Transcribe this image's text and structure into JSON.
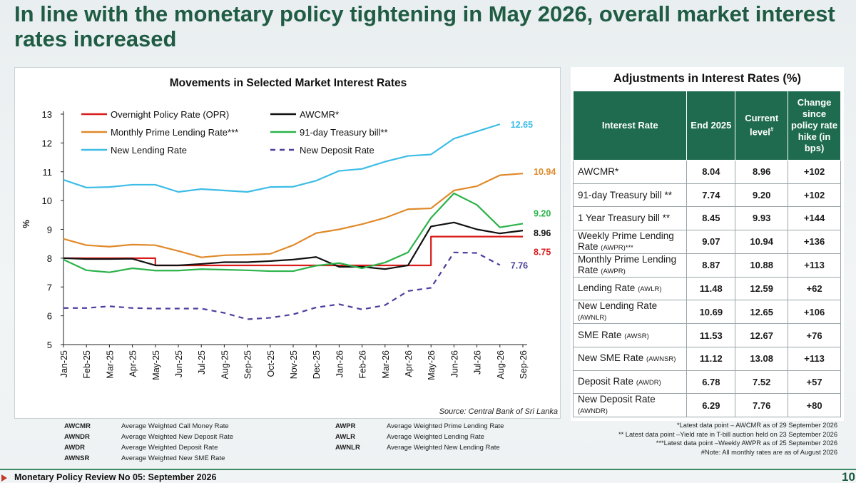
{
  "slide": {
    "title": "In line with the monetary policy tightening in May 2026, overall market interest rates increased"
  },
  "chart_data": {
    "type": "line",
    "title": "Movements in Selected Market Interest Rates",
    "ylabel": "%",
    "xlabel": "",
    "ylim": [
      5,
      13
    ],
    "yticks": [
      5,
      6,
      7,
      8,
      9,
      10,
      11,
      12,
      13
    ],
    "grid": false,
    "legend_placement": "top-left",
    "categories": [
      "Jan-25",
      "Feb-25",
      "Mar-25",
      "Apr-25",
      "May-25",
      "Jun-25",
      "Jul-25",
      "Aug-25",
      "Sep-25",
      "Oct-25",
      "Nov-25",
      "Dec-25",
      "Jan-26",
      "Feb-26",
      "Mar-26",
      "Apr-26",
      "May-26",
      "Jun-26",
      "Jul-26",
      "Aug-26",
      "Sep-26"
    ],
    "series": [
      {
        "name": "Overnight Policy Rate (OPR)",
        "color": "#d91c1c",
        "dash": false,
        "step": true,
        "end_label": "8.75",
        "values": [
          8.0,
          8.0,
          8.0,
          8.0,
          7.75,
          7.75,
          7.75,
          7.75,
          7.75,
          7.75,
          7.75,
          7.75,
          7.75,
          7.75,
          7.75,
          7.75,
          8.75,
          8.75,
          8.75,
          8.75,
          8.75
        ]
      },
      {
        "name": "AWCMR*",
        "color": "#111111",
        "dash": false,
        "step": false,
        "end_label": "8.96",
        "values": [
          8.0,
          7.97,
          7.97,
          7.98,
          7.75,
          7.75,
          7.8,
          7.86,
          7.86,
          7.9,
          7.95,
          8.04,
          7.7,
          7.7,
          7.62,
          7.75,
          9.1,
          9.24,
          9.0,
          8.86,
          8.96
        ]
      },
      {
        "name": "Monthly Prime Lending Rate***",
        "color": "#e08a2a",
        "dash": false,
        "step": false,
        "end_label": "10.94",
        "values": [
          8.67,
          8.45,
          8.4,
          8.47,
          8.45,
          8.25,
          8.03,
          8.1,
          8.12,
          8.15,
          8.45,
          8.87,
          9.0,
          9.18,
          9.4,
          9.7,
          9.73,
          10.35,
          10.5,
          10.88,
          10.94
        ]
      },
      {
        "name": "91-day Treasury bill**",
        "color": "#2bb34a",
        "dash": false,
        "step": false,
        "end_label": "9.20",
        "values": [
          7.95,
          7.58,
          7.51,
          7.65,
          7.57,
          7.57,
          7.62,
          7.6,
          7.58,
          7.55,
          7.55,
          7.74,
          7.83,
          7.65,
          7.85,
          8.2,
          9.4,
          10.25,
          9.85,
          9.07,
          9.2
        ]
      },
      {
        "name": "New Lending Rate",
        "color": "#3cbde6",
        "dash": false,
        "step": false,
        "end_label": "12.65",
        "values": [
          10.72,
          10.45,
          10.47,
          10.55,
          10.55,
          10.3,
          10.4,
          10.35,
          10.3,
          10.47,
          10.48,
          10.69,
          11.03,
          11.1,
          11.35,
          11.55,
          11.6,
          12.15,
          12.4,
          12.65,
          null
        ]
      },
      {
        "name": "New Deposit Rate",
        "color": "#4a3f9c",
        "dash": true,
        "step": false,
        "end_label": "7.76",
        "values": [
          6.27,
          6.27,
          6.33,
          6.27,
          6.25,
          6.25,
          6.25,
          6.1,
          5.88,
          5.93,
          6.05,
          6.29,
          6.4,
          6.22,
          6.37,
          6.86,
          6.97,
          8.2,
          8.18,
          7.76,
          null
        ]
      }
    ],
    "source": "Source: Central Bank of Sri Lanka"
  },
  "glossary": [
    {
      "abbr": "AWCMR",
      "desc": "Average Weighted Call Money Rate"
    },
    {
      "abbr": "AWNDR",
      "desc": "Average Weighted New Deposit Rate"
    },
    {
      "abbr": "AWDR",
      "desc": "Average Weighted Deposit Rate"
    },
    {
      "abbr": "AWNSR",
      "desc": "Average Weighted New SME Rate"
    },
    {
      "abbr": "AWPR",
      "desc": "Average Weighted Prime Lending Rate"
    },
    {
      "abbr": "AWLR",
      "desc": "Average Weighted Lending Rate"
    },
    {
      "abbr": "AWNLR",
      "desc": "Average Weighted New Lending Rate"
    }
  ],
  "table": {
    "title": "Adjustments in Interest Rates (%)",
    "headers": {
      "rate": "Interest Rate",
      "end": "End 2025",
      "current": "Current level",
      "current_sup": "#",
      "change": "Change since policy rate hike (in bps)"
    },
    "rows": [
      {
        "name": "AWCMR*",
        "abbr": "",
        "end": "8.04",
        "current": "8.96",
        "change": "+102"
      },
      {
        "name": "91-day Treasury bill **",
        "abbr": "",
        "end": "7.74",
        "current": "9.20",
        "change": "+102"
      },
      {
        "name": "1 Year Treasury bill **",
        "abbr": "",
        "end": "8.45",
        "current": "9.93",
        "change": "+144"
      },
      {
        "name": "Weekly Prime Lending Rate",
        "abbr": "(AWPR)***",
        "end": "9.07",
        "current": "10.94",
        "change": "+136"
      },
      {
        "name": "Monthly Prime Lending Rate",
        "abbr": "(AWPR)",
        "end": "8.87",
        "current": "10.88",
        "change": "+113"
      },
      {
        "name": "Lending Rate",
        "abbr": "(AWLR)",
        "end": "11.48",
        "current": "12.59",
        "change": "+62"
      },
      {
        "name": "New Lending Rate",
        "abbr": "(AWNLR)",
        "end": "10.69",
        "current": "12.65",
        "change": "+106"
      },
      {
        "name": "SME Rate",
        "abbr": "(AWSR)",
        "end": "11.53",
        "current": "12.67",
        "change": "+76"
      },
      {
        "name": "New SME Rate",
        "abbr": "(AWNSR)",
        "end": "11.12",
        "current": "13.08",
        "change": "+113"
      },
      {
        "name": "Deposit Rate",
        "abbr": "(AWDR)",
        "end": "6.78",
        "current": "7.52",
        "change": "+57"
      },
      {
        "name": "New Deposit Rate",
        "abbr": "(AWNDR)",
        "end": "6.29",
        "current": "7.76",
        "change": "+80"
      }
    ],
    "notes": [
      "*Latest data point – AWCMR as of 29 September 2026",
      "** Latest data point –Yield rate in T-bill auction held on 23 September 2026",
      "***Latest data point –Weekly AWPR as of 25 September 2026",
      "#Note: All monthly rates are as of August 2026"
    ]
  },
  "footer": {
    "text": "Monetary Policy Review No 05: September 2026",
    "page": "10"
  }
}
